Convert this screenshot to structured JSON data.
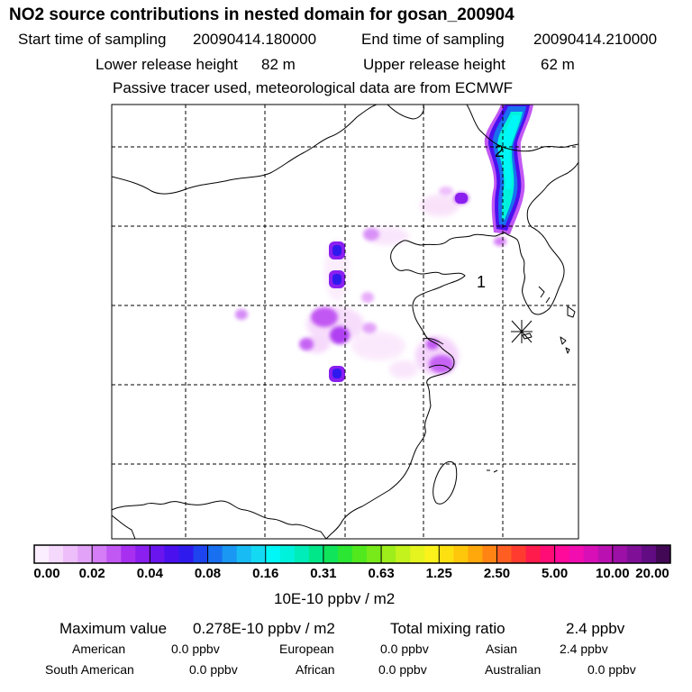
{
  "header": {
    "title": "NO2 source contributions in nested domain for gosan_200904",
    "start_label": "Start time of sampling",
    "start_value": "20090414.180000",
    "end_label": "End time of sampling",
    "end_value": "20090414.210000",
    "lower_label": "Lower release height",
    "lower_value": "82 m",
    "upper_label": "Upper release height",
    "upper_value": "62 m",
    "note": "Passive tracer used, meteorological data are from ECMWF"
  },
  "map": {
    "labels": [
      "2",
      "1"
    ],
    "receptor_icon": "star-marker-icon"
  },
  "colorbar": {
    "colors": [
      "#fbeefe",
      "#f5d9fd",
      "#eebefb",
      "#e2a2f8",
      "#d47df6",
      "#c258f3",
      "#a82ff0",
      "#8a1ff0",
      "#6a14ee",
      "#4b10ee",
      "#2f1aee",
      "#1d44ef",
      "#1870f0",
      "#1a97f2",
      "#18bbf3",
      "#14d9f3",
      "#00f7f7",
      "#00f2dd",
      "#00ecb8",
      "#00e78a",
      "#10e45a",
      "#2be632",
      "#52e81e",
      "#78ea1a",
      "#9dee1a",
      "#c3f21d",
      "#e5f41e",
      "#fbf21c",
      "#fde010",
      "#ffc70b",
      "#ffa80b",
      "#ff8413",
      "#ff5e23",
      "#ff3b30",
      "#ff1b4b",
      "#ff0c76",
      "#ff0a9a",
      "#f10db0",
      "#d80fb6",
      "#ba10b1",
      "#9c10a7",
      "#800f98",
      "#620c84",
      "#420856"
    ],
    "ticks": [
      "0.00",
      "0.02",
      "0.04",
      "0.08",
      "0.16",
      "0.31",
      "0.63",
      "1.25",
      "2.50",
      "5.00",
      "10.00",
      "20.00"
    ],
    "unit": "10E-10 ppbv / m2"
  },
  "summary": {
    "max_label": "Maximum value",
    "max_value": "0.278E-10 ppbv / m2",
    "total_label": "Total mixing ratio",
    "total_value": "2.4 ppbv",
    "regions": [
      {
        "name": "American",
        "value": "0.0 ppbv"
      },
      {
        "name": "European",
        "value": "0.0 ppbv"
      },
      {
        "name": "Asian",
        "value": "2.4 ppbv"
      },
      {
        "name": "South American",
        "value": "0.0 ppbv"
      },
      {
        "name": "African",
        "value": "0.0 ppbv"
      },
      {
        "name": "Australian",
        "value": "0.0 ppbv"
      }
    ]
  }
}
